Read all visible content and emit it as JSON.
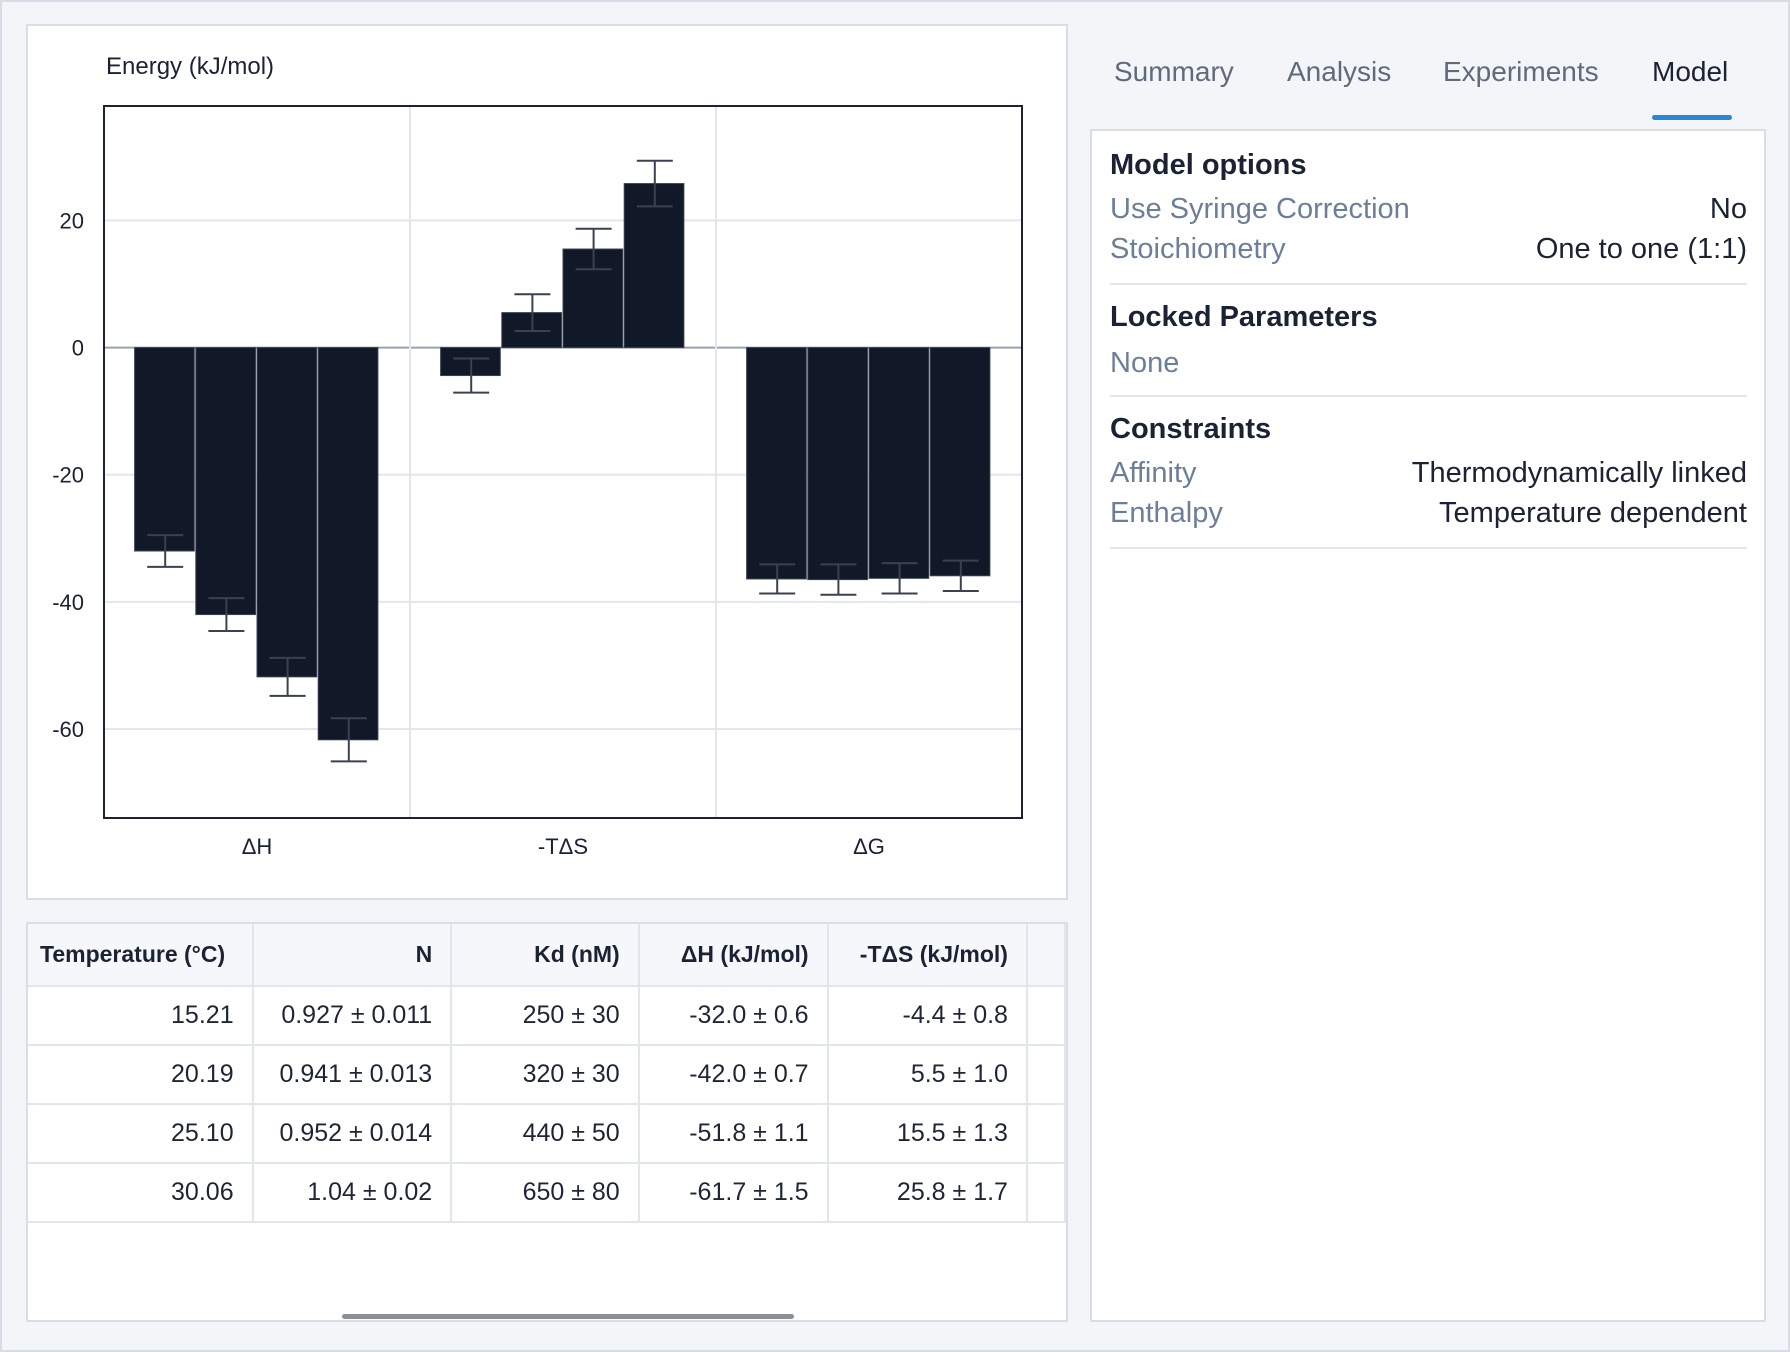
{
  "chart": {
    "ylabel": "Energy (kJ/mol)"
  },
  "chart_data": {
    "type": "bar",
    "ylabel": "Energy (kJ/mol)",
    "categories": [
      "ΔH",
      "-TΔS",
      "ΔG"
    ],
    "ylim": [
      -74,
      38
    ],
    "yticks": [
      20,
      0,
      -20,
      -40,
      -60
    ],
    "grid": true,
    "series_per_category": [
      {
        "category": "ΔH",
        "values": [
          -32.0,
          -42.0,
          -51.8,
          -61.7
        ],
        "errors": [
          0.6,
          0.7,
          1.1,
          1.5
        ]
      },
      {
        "category": "-TΔS",
        "values": [
          -4.4,
          5.5,
          15.5,
          25.8
        ],
        "errors": [
          0.8,
          1.0,
          1.3,
          1.7
        ]
      },
      {
        "category": "ΔG",
        "values": [
          -36.4,
          -36.5,
          -36.3,
          -35.9
        ],
        "errors": [
          0.4,
          0.5,
          0.5,
          0.5
        ]
      }
    ],
    "bar_color": "#111827"
  },
  "table": {
    "headers": [
      "Temperature (°C)",
      "N",
      "Kd (nM)",
      "ΔH (kJ/mol)",
      "-TΔS (kJ/mol)"
    ],
    "rows": [
      [
        "15.21",
        "0.927 ± 0.011",
        "250 ± 30",
        "-32.0 ± 0.6",
        "-4.4 ± 0.8"
      ],
      [
        "20.19",
        "0.941 ± 0.013",
        "320 ± 30",
        "-42.0 ± 0.7",
        "5.5 ± 1.0"
      ],
      [
        "25.10",
        "0.952 ± 0.014",
        "440 ± 50",
        "-51.8 ± 1.1",
        "15.5 ± 1.3"
      ],
      [
        "30.06",
        "1.04 ± 0.02",
        "650 ± 80",
        "-61.7 ± 1.5",
        "25.8 ± 1.7"
      ]
    ]
  },
  "tabs": [
    {
      "label": "Summary",
      "active": false
    },
    {
      "label": "Analysis",
      "active": false
    },
    {
      "label": "Experiments",
      "active": false
    },
    {
      "label": "Model",
      "active": true
    }
  ],
  "model": {
    "options_title": "Model options",
    "options": [
      {
        "key": "Use Syringe Correction",
        "value": "No"
      },
      {
        "key": "Stoichiometry",
        "value": "One to one (1:1)"
      }
    ],
    "locked_title": "Locked Parameters",
    "locked_value": "None",
    "constraints_title": "Constraints",
    "constraints": [
      {
        "key": "Affinity",
        "value": "Thermodynamically linked"
      },
      {
        "key": "Enthalpy",
        "value": "Temperature dependent"
      }
    ]
  },
  "colors": {
    "accent": "#2a86d4",
    "bar": "#111827",
    "muted_label": "#6c7f99"
  }
}
